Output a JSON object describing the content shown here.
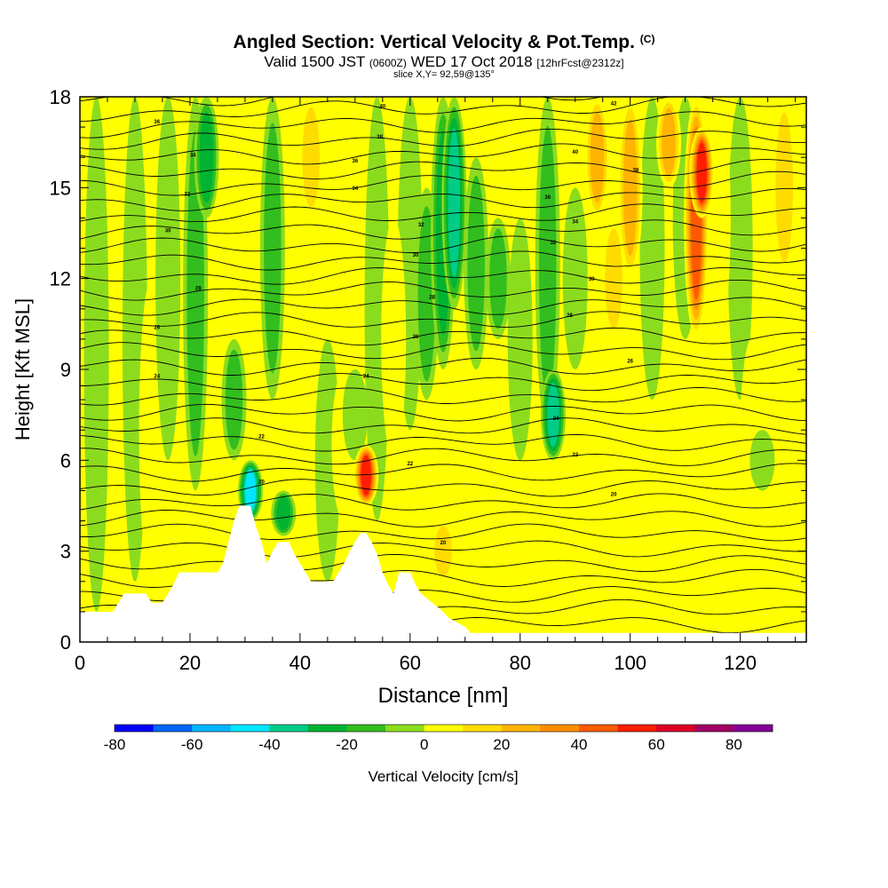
{
  "header": {
    "title": "Angled Section: Vertical Velocity & Pot.Temp.",
    "title_suffix": "(C)",
    "valid_prefix": "Valid 1500 JST",
    "valid_utc": "(0600Z)",
    "valid_date": "WED 17 Oct 2018",
    "forecast": "[12hrFcst@2312z]",
    "slice": "slice X,Y= 92,59@135°"
  },
  "chart_data": {
    "type": "heatmap",
    "xlabel": "Distance [nm]",
    "ylabel": "Height [Kft MSL]",
    "xlim": [
      0,
      132
    ],
    "ylim": [
      0,
      18
    ],
    "x_ticks": [
      0,
      20,
      40,
      60,
      80,
      100,
      120
    ],
    "y_ticks": [
      0,
      3,
      6,
      9,
      12,
      15,
      18
    ],
    "colorbar": {
      "label": "Vertical Velocity [cm/s]",
      "range": [
        -80,
        90
      ],
      "step": 10,
      "tick_labels": [
        -80,
        -60,
        -40,
        -20,
        0,
        20,
        40,
        60,
        80
      ],
      "colors": [
        "#0000ff",
        "#0064ff",
        "#00b4ff",
        "#00e6ff",
        "#00cc88",
        "#00b432",
        "#32be1e",
        "#8cdc1e",
        "#ffff00",
        "#ffdc00",
        "#ffb400",
        "#ff8c00",
        "#ff5a00",
        "#ff1e00",
        "#dc0028",
        "#a00064",
        "#820096"
      ]
    },
    "vertical_velocity_columns": [
      {
        "x": 3,
        "w": -5,
        "top": 18,
        "bottom": 1
      },
      {
        "x": 10,
        "w": -8,
        "top": 18,
        "bottom": 2
      },
      {
        "x": 13,
        "w": 8,
        "top": 12,
        "bottom": 2
      },
      {
        "x": 16,
        "w": -18,
        "top": 18,
        "bottom": 6
      },
      {
        "x": 19,
        "w": 14,
        "top": 6,
        "bottom": 2.5
      },
      {
        "x": 21,
        "w": -25,
        "top": 18,
        "bottom": 5
      },
      {
        "x": 23,
        "w": -38,
        "top": 18,
        "bottom": 14
      },
      {
        "x": 25,
        "w": 12,
        "top": 14,
        "bottom": 7
      },
      {
        "x": 28,
        "w": -22,
        "top": 10,
        "bottom": 6
      },
      {
        "x": 29,
        "w": 18,
        "top": 18,
        "bottom": 7
      },
      {
        "x": 31,
        "w": -52,
        "top": 6,
        "bottom": 4
      },
      {
        "x": 33,
        "w": 16,
        "top": 6,
        "bottom": 3
      },
      {
        "x": 35,
        "w": -22,
        "top": 18,
        "bottom": 8
      },
      {
        "x": 37,
        "w": -35,
        "top": 5,
        "bottom": 3.5
      },
      {
        "x": 40,
        "w": 10,
        "top": 16,
        "bottom": 3
      },
      {
        "x": 42,
        "w": 20,
        "top": 18,
        "bottom": 14
      },
      {
        "x": 45,
        "w": -12,
        "top": 10,
        "bottom": 2
      },
      {
        "x": 48,
        "w": 12,
        "top": 9,
        "bottom": 4
      },
      {
        "x": 50,
        "w": -18,
        "top": 9,
        "bottom": 6
      },
      {
        "x": 52,
        "w": 62,
        "top": 6.5,
        "bottom": 4.5
      },
      {
        "x": 54,
        "w": -15,
        "top": 18,
        "bottom": 4
      },
      {
        "x": 57,
        "w": 15,
        "top": 14,
        "bottom": 6
      },
      {
        "x": 60,
        "w": -10,
        "top": 18,
        "bottom": 7
      },
      {
        "x": 63,
        "w": -25,
        "top": 15,
        "bottom": 8
      },
      {
        "x": 66,
        "w": -32,
        "top": 18,
        "bottom": 9
      },
      {
        "x": 68,
        "w": -48,
        "top": 18,
        "bottom": 11
      },
      {
        "x": 66,
        "w": 28,
        "top": 4,
        "bottom": 2
      },
      {
        "x": 72,
        "w": -22,
        "top": 16,
        "bottom": 9
      },
      {
        "x": 76,
        "w": -28,
        "top": 14,
        "bottom": 10
      },
      {
        "x": 80,
        "w": -15,
        "top": 14,
        "bottom": 6
      },
      {
        "x": 82,
        "w": 18,
        "top": 6,
        "bottom": 1
      },
      {
        "x": 85,
        "w": -20,
        "top": 18,
        "bottom": 7
      },
      {
        "x": 86,
        "w": -40,
        "top": 9,
        "bottom": 6
      },
      {
        "x": 90,
        "w": -12,
        "top": 15,
        "bottom": 9
      },
      {
        "x": 92,
        "w": 12,
        "top": 6,
        "bottom": 1
      },
      {
        "x": 94,
        "w": 30,
        "top": 18,
        "bottom": 14
      },
      {
        "x": 97,
        "w": 22,
        "top": 14,
        "bottom": 10
      },
      {
        "x": 100,
        "w": 35,
        "top": 18,
        "bottom": 12
      },
      {
        "x": 104,
        "w": -18,
        "top": 18,
        "bottom": 8
      },
      {
        "x": 107,
        "w": 30,
        "top": 18,
        "bottom": 15
      },
      {
        "x": 110,
        "w": -18,
        "top": 18,
        "bottom": 10
      },
      {
        "x": 112,
        "w": 52,
        "top": 18,
        "bottom": 10
      },
      {
        "x": 113,
        "w": 60,
        "top": 17,
        "bottom": 14
      },
      {
        "x": 116,
        "w": 18,
        "top": 18,
        "bottom": 10
      },
      {
        "x": 120,
        "w": -10,
        "top": 18,
        "bottom": 8
      },
      {
        "x": 122,
        "w": 12,
        "top": 10,
        "bottom": 1
      },
      {
        "x": 124,
        "w": -18,
        "top": 7,
        "bottom": 5
      },
      {
        "x": 128,
        "w": 22,
        "top": 18,
        "bottom": 12
      }
    ],
    "terrain_profile": [
      [
        0,
        1
      ],
      [
        6,
        1
      ],
      [
        7,
        1.3
      ],
      [
        8,
        1.6
      ],
      [
        12,
        1.6
      ],
      [
        13,
        1.3
      ],
      [
        15,
        1.3
      ],
      [
        16,
        1.6
      ],
      [
        17,
        1.9
      ],
      [
        18,
        2.3
      ],
      [
        25,
        2.3
      ],
      [
        26,
        2.6
      ],
      [
        27,
        3.3
      ],
      [
        28,
        4.0
      ],
      [
        29,
        4.5
      ],
      [
        31,
        4.5
      ],
      [
        32,
        3.8
      ],
      [
        33,
        3.3
      ],
      [
        34,
        2.6
      ],
      [
        35,
        3.0
      ],
      [
        36,
        3.3
      ],
      [
        38,
        3.3
      ],
      [
        39,
        2.9
      ],
      [
        40,
        2.6
      ],
      [
        41,
        2.3
      ],
      [
        42,
        2.0
      ],
      [
        46,
        2.0
      ],
      [
        47,
        2.3
      ],
      [
        48,
        2.6
      ],
      [
        49,
        3.0
      ],
      [
        50,
        3.3
      ],
      [
        51,
        3.6
      ],
      [
        52,
        3.6
      ],
      [
        53,
        3.3
      ],
      [
        54,
        2.9
      ],
      [
        55,
        2.3
      ],
      [
        56,
        1.9
      ],
      [
        57,
        1.6
      ],
      [
        58,
        2.3
      ],
      [
        60,
        2.3
      ],
      [
        61,
        1.9
      ],
      [
        62,
        1.6
      ],
      [
        64,
        1.3
      ],
      [
        66,
        1.0
      ],
      [
        67,
        0.8
      ],
      [
        70,
        0.5
      ],
      [
        71,
        0.3
      ],
      [
        132,
        0.3
      ]
    ],
    "potential_temperature_labels": [
      {
        "x": 14,
        "z": 17.2,
        "text": "36"
      },
      {
        "x": 20.5,
        "z": 16.1,
        "text": "34"
      },
      {
        "x": 19.5,
        "z": 14.8,
        "text": "32"
      },
      {
        "x": 16,
        "z": 13.6,
        "text": "30"
      },
      {
        "x": 21.5,
        "z": 11.7,
        "text": "28"
      },
      {
        "x": 14,
        "z": 10.4,
        "text": "26"
      },
      {
        "x": 14,
        "z": 8.8,
        "text": "24"
      },
      {
        "x": 33,
        "z": 6.8,
        "text": "22"
      },
      {
        "x": 33,
        "z": 5.3,
        "text": "20"
      },
      {
        "x": 55,
        "z": 17.7,
        "text": "40"
      },
      {
        "x": 54.5,
        "z": 16.7,
        "text": "38"
      },
      {
        "x": 50,
        "z": 15.9,
        "text": "36"
      },
      {
        "x": 50,
        "z": 15.0,
        "text": "34"
      },
      {
        "x": 62,
        "z": 13.8,
        "text": "32"
      },
      {
        "x": 61,
        "z": 12.8,
        "text": "30"
      },
      {
        "x": 64,
        "z": 11.4,
        "text": "28"
      },
      {
        "x": 61,
        "z": 10.1,
        "text": "26"
      },
      {
        "x": 52,
        "z": 8.8,
        "text": "24"
      },
      {
        "x": 60,
        "z": 5.9,
        "text": "22"
      },
      {
        "x": 66,
        "z": 3.3,
        "text": "20"
      },
      {
        "x": 97,
        "z": 17.8,
        "text": "42"
      },
      {
        "x": 90,
        "z": 16.2,
        "text": "40"
      },
      {
        "x": 101,
        "z": 15.6,
        "text": "38"
      },
      {
        "x": 85,
        "z": 14.7,
        "text": "36"
      },
      {
        "x": 90,
        "z": 13.9,
        "text": "34"
      },
      {
        "x": 86,
        "z": 13.2,
        "text": "32"
      },
      {
        "x": 93,
        "z": 12.0,
        "text": "30"
      },
      {
        "x": 89,
        "z": 10.8,
        "text": "28"
      },
      {
        "x": 100,
        "z": 9.3,
        "text": "26"
      },
      {
        "x": 86.5,
        "z": 7.4,
        "text": "24"
      },
      {
        "x": 90,
        "z": 6.2,
        "text": "22"
      },
      {
        "x": 97,
        "z": 4.9,
        "text": "20"
      }
    ]
  }
}
